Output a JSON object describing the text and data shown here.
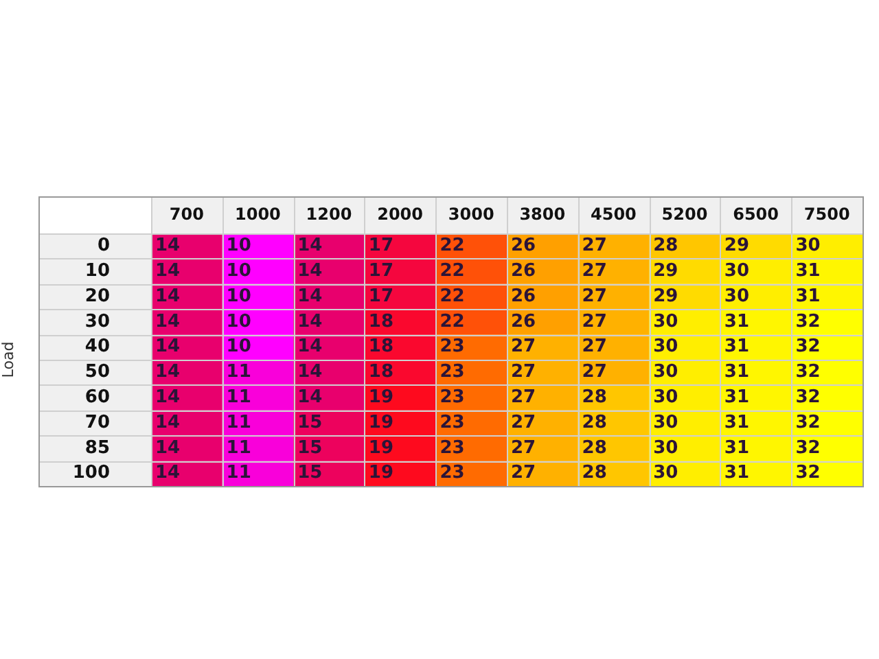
{
  "chart_data": {
    "type": "heatmap",
    "ylabel": "Load",
    "data_labels": true,
    "categories": [
      "700",
      "1000",
      "1200",
      "2000",
      "3000",
      "3800",
      "4500",
      "5200",
      "6500",
      "7500"
    ],
    "y_categories": [
      "0",
      "10",
      "20",
      "30",
      "40",
      "50",
      "60",
      "70",
      "85",
      "100"
    ],
    "cells": [
      [
        14,
        10,
        14,
        17,
        22,
        26,
        27,
        28,
        29,
        30
      ],
      [
        14,
        10,
        14,
        17,
        22,
        26,
        27,
        29,
        30,
        31
      ],
      [
        14,
        10,
        14,
        17,
        22,
        26,
        27,
        29,
        30,
        31
      ],
      [
        14,
        10,
        14,
        18,
        22,
        26,
        27,
        30,
        31,
        32
      ],
      [
        14,
        10,
        14,
        18,
        23,
        27,
        27,
        30,
        31,
        32
      ],
      [
        14,
        11,
        14,
        18,
        23,
        27,
        27,
        30,
        31,
        32
      ],
      [
        14,
        11,
        14,
        19,
        23,
        27,
        28,
        30,
        31,
        32
      ],
      [
        14,
        11,
        15,
        19,
        23,
        27,
        28,
        30,
        31,
        32
      ],
      [
        14,
        11,
        15,
        19,
        23,
        27,
        28,
        30,
        31,
        32
      ],
      [
        14,
        11,
        15,
        19,
        23,
        27,
        28,
        30,
        31,
        32
      ]
    ]
  }
}
